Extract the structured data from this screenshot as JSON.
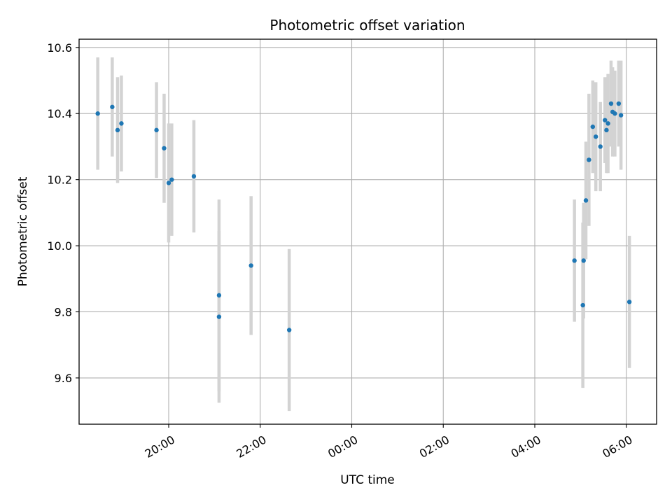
{
  "chart_data": {
    "type": "scatter",
    "title": "Photometric offset variation",
    "xlabel": "UTC time",
    "ylabel": "Photometric offset",
    "x_tick_labels": [
      "20:00",
      "22:00",
      "00:00",
      "02:00",
      "04:00",
      "06:00"
    ],
    "y_tick_labels": [
      "9.6",
      "9.8",
      "10.0",
      "10.2",
      "10.4",
      "10.6"
    ],
    "ylim": [
      9.46,
      10.625
    ],
    "grid": true,
    "colors": {
      "points": "#1f77b4",
      "errorbars": "#d3d3d3",
      "grid": "#b0b0b0"
    },
    "points": [
      {
        "t": "18:27",
        "y": 10.4,
        "err": 0.17
      },
      {
        "t": "18:46",
        "y": 10.42,
        "err": 0.15
      },
      {
        "t": "18:53",
        "y": 10.35,
        "err": 0.16
      },
      {
        "t": "18:58",
        "y": 10.37,
        "err": 0.145
      },
      {
        "t": "19:44",
        "y": 10.35,
        "err": 0.145
      },
      {
        "t": "19:54",
        "y": 10.295,
        "err": 0.165
      },
      {
        "t": "20:00",
        "y": 10.19,
        "err": 0.18
      },
      {
        "t": "20:04",
        "y": 10.2,
        "err": 0.17
      },
      {
        "t": "20:33",
        "y": 10.21,
        "err": 0.17
      },
      {
        "t": "21:06",
        "y": 9.785,
        "err": 0.26
      },
      {
        "t": "21:06",
        "y": 9.85,
        "err": 0.29
      },
      {
        "t": "21:48",
        "y": 9.94,
        "err": 0.21
      },
      {
        "t": "22:38",
        "y": 9.745,
        "err": 0.245
      },
      {
        "t": "04:52",
        "y": 9.955,
        "err": 0.185
      },
      {
        "t": "05:03",
        "y": 9.82,
        "err": 0.25
      },
      {
        "t": "05:04",
        "y": 9.955,
        "err": 0.175
      },
      {
        "t": "05:07",
        "y": 10.137,
        "err": 0.178
      },
      {
        "t": "05:11",
        "y": 10.26,
        "err": 0.2
      },
      {
        "t": "05:16",
        "y": 10.36,
        "err": 0.14
      },
      {
        "t": "05:20",
        "y": 10.33,
        "err": 0.165
      },
      {
        "t": "05:26",
        "y": 10.3,
        "err": 0.135
      },
      {
        "t": "05:32",
        "y": 10.38,
        "err": 0.13
      },
      {
        "t": "05:34",
        "y": 10.35,
        "err": 0.13
      },
      {
        "t": "05:36",
        "y": 10.37,
        "err": 0.15
      },
      {
        "t": "05:40",
        "y": 10.43,
        "err": 0.13
      },
      {
        "t": "05:42",
        "y": 10.405,
        "err": 0.135
      },
      {
        "t": "05:45",
        "y": 10.4,
        "err": 0.13
      },
      {
        "t": "05:50",
        "y": 10.43,
        "err": 0.13
      },
      {
        "t": "05:53",
        "y": 10.395,
        "err": 0.165
      },
      {
        "t": "06:04",
        "y": 9.83,
        "err": 0.2
      }
    ]
  }
}
